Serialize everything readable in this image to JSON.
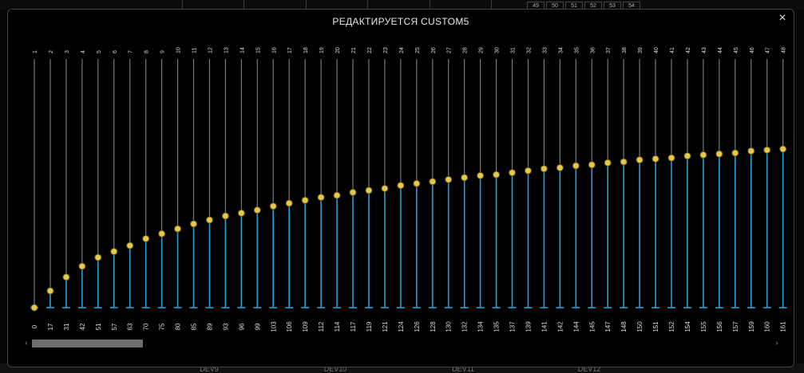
{
  "modal": {
    "title": "РЕДАКТИРУЕТСЯ CUSTOM5",
    "close_glyph": "×"
  },
  "background": {
    "top_cells": [
      "49",
      "50",
      "51",
      "52",
      "53",
      "54"
    ],
    "bottom_labels": [
      "DEV9",
      "DEV10",
      "DEV11",
      "DEV12"
    ]
  },
  "scrollbar": {
    "left_glyph": "‹",
    "right_glyph": "›",
    "thumb_fraction": 0.15
  },
  "colors": {
    "bar": "#2a9fd6",
    "track": "#777777",
    "point": "#e6c84a",
    "point_ring": "#6a5a10",
    "label": "#dddddd"
  },
  "chart_data": {
    "type": "line",
    "x": [
      1,
      2,
      3,
      4,
      5,
      6,
      7,
      8,
      9,
      10,
      11,
      12,
      13,
      14,
      15,
      16,
      17,
      18,
      19,
      20,
      21,
      22,
      23,
      24,
      25,
      26,
      27,
      28,
      29,
      30,
      31,
      32,
      33,
      34,
      35,
      36,
      37,
      38,
      39,
      40,
      41,
      42,
      43,
      44,
      45,
      46,
      47,
      48
    ],
    "values": [
      0,
      17,
      31,
      42,
      51,
      57,
      63,
      70,
      75,
      80,
      85,
      89,
      93,
      96,
      99,
      103,
      106,
      109,
      112,
      114,
      117,
      119,
      121,
      124,
      126,
      128,
      130,
      132,
      134,
      135,
      137,
      139,
      141,
      142,
      144,
      145,
      147,
      148,
      150,
      151,
      152,
      154,
      155,
      156,
      157,
      159,
      160,
      161
    ],
    "ylim": [
      0,
      161
    ]
  }
}
